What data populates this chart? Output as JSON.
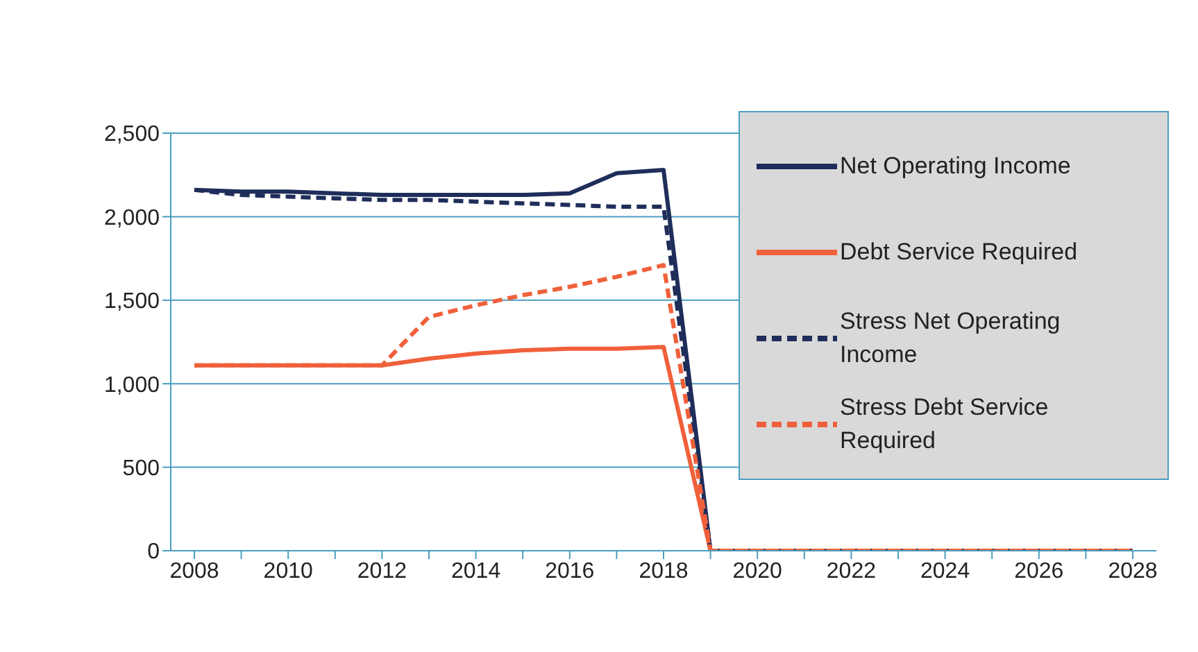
{
  "chart_data": {
    "type": "line",
    "categories": [
      "2008",
      null,
      "2010",
      null,
      "2012",
      null,
      "2014",
      null,
      "2016",
      null,
      "2018",
      null,
      "2020",
      null,
      "2022",
      null,
      "2024",
      null,
      "2026",
      null,
      "2028"
    ],
    "series": [
      {
        "name": "Net Operating Income",
        "color": "#1f2d5a",
        "line_style": "solid",
        "values": [
          2160,
          2150,
          2150,
          2140,
          2130,
          2130,
          2130,
          2130,
          2140,
          2260,
          2280,
          0,
          0,
          0,
          0,
          0,
          0,
          0,
          0,
          0,
          0
        ]
      },
      {
        "name": "Debt Service Required",
        "color": "#f0603a",
        "line_style": "solid",
        "values": [
          1110,
          1110,
          1110,
          1110,
          1110,
          1150,
          1180,
          1200,
          1210,
          1210,
          1220,
          0,
          0,
          0,
          0,
          0,
          0,
          0,
          0,
          0,
          0
        ]
      },
      {
        "name": "Stress Net Operating Income",
        "color": "#1f2d5a",
        "line_style": "dashed",
        "values": [
          2160,
          2130,
          2120,
          2110,
          2100,
          2100,
          2090,
          2080,
          2070,
          2060,
          2060,
          0,
          0,
          0,
          0,
          0,
          0,
          0,
          0,
          0,
          0
        ]
      },
      {
        "name": "Stress Debt Service Required",
        "color": "#f0603a",
        "line_style": "dashed",
        "values": [
          1110,
          1110,
          1110,
          1110,
          1110,
          1400,
          1470,
          1530,
          1580,
          1640,
          1710,
          0,
          0,
          0,
          0,
          0,
          0,
          0,
          0,
          0,
          0
        ]
      }
    ],
    "ylim": [
      0,
      2500
    ],
    "yticks": [
      0,
      500,
      {
        "value": 1000,
        "label": "1,000"
      },
      {
        "value": 1500,
        "label": "1,500"
      },
      {
        "value": 2000,
        "label": "2,000"
      },
      {
        "value": 2500,
        "label": "2,500"
      }
    ],
    "grid": "y",
    "legend": "top right",
    "marker": "none"
  }
}
